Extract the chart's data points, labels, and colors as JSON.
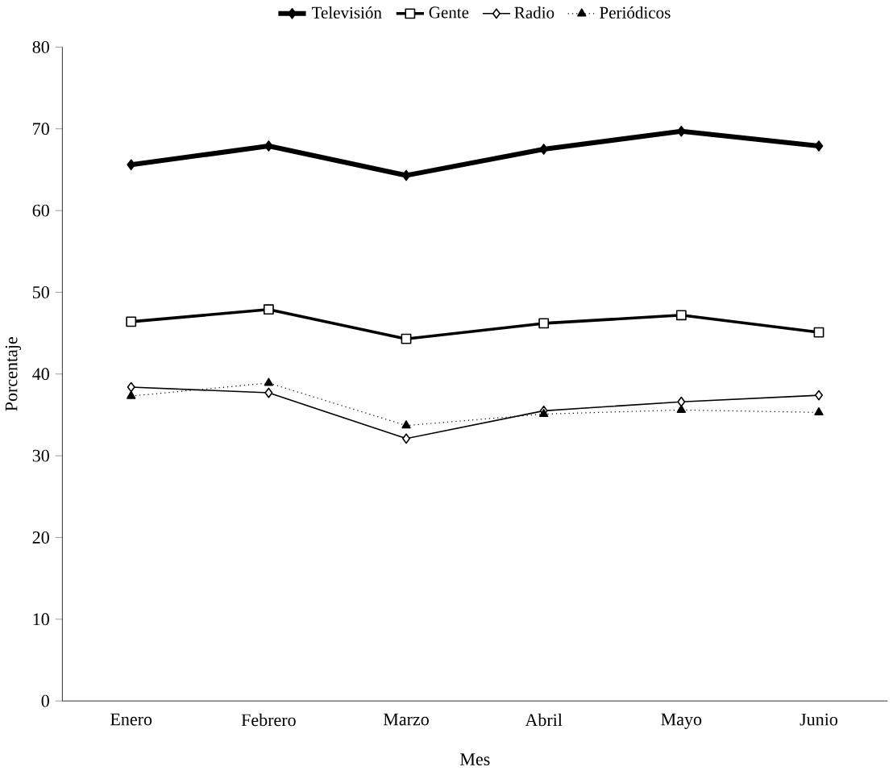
{
  "chart_data": {
    "type": "line",
    "xlabel": "Mes",
    "ylabel": "Porcentaje",
    "categories": [
      "Enero",
      "Febrero",
      "Marzo",
      "Abril",
      "Mayo",
      "Junio"
    ],
    "series": [
      {
        "name": "Televisión",
        "color": "#000000",
        "marker": "diamond",
        "line_style": "solid",
        "values": [
          65.6,
          67.9,
          64.3,
          67.5,
          69.7,
          67.9
        ]
      },
      {
        "name": "Gente",
        "color": "#000000",
        "marker": "square",
        "line_style": "solid",
        "values": [
          46.4,
          47.9,
          44.3,
          46.2,
          47.2,
          45.1
        ]
      },
      {
        "name": "Radio",
        "color": "#000000",
        "marker": "diamond",
        "line_style": "solid",
        "values": [
          38.4,
          37.7,
          32.1,
          35.5,
          36.6,
          37.4
        ]
      },
      {
        "name": "Periódicos",
        "color": "#000000",
        "marker": "triangle",
        "line_style": "dotted",
        "values": [
          37.3,
          38.9,
          33.7,
          35.1,
          35.6,
          35.3
        ]
      }
    ],
    "ylim": [
      0,
      80
    ],
    "yticks": [
      0,
      10,
      20,
      30,
      40,
      50,
      60,
      70,
      80
    ],
    "grid": false,
    "legend": "top"
  }
}
